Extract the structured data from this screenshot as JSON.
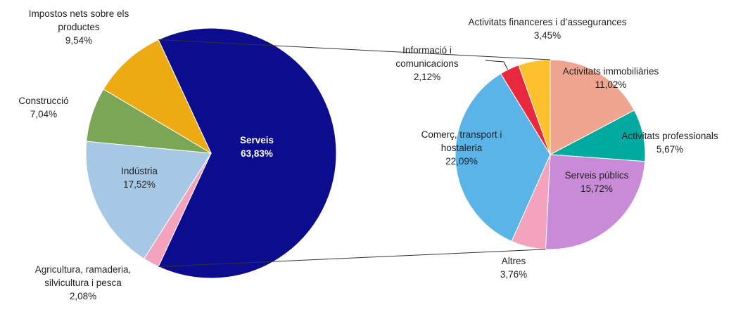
{
  "chart_data": [
    {
      "type": "pie",
      "categories": [
        "Serveis",
        "Agricultura, ramaderia, silvicultura i pesca",
        "Indústria",
        "Construcció",
        "Impostos nets sobre els productes"
      ],
      "values": [
        63.83,
        2.08,
        17.52,
        7.04,
        9.54
      ],
      "value_labels": [
        "63,83%",
        "2,08%",
        "17,52%",
        "7,04%",
        "9,54%"
      ],
      "colors": [
        "#0c0c8e",
        "#f4a3bf",
        "#a6c8e4",
        "#7aa655",
        "#eeaa12"
      ]
    },
    {
      "type": "pie",
      "categories": [
        "Activitats immobiliàries",
        "Activitats professionals",
        "Serveis públics",
        "Altres",
        "Comerç, transport i hostaleria",
        "Informació i comunicacions",
        "Activitats financeres i d’assegurances"
      ],
      "values": [
        11.02,
        5.67,
        15.72,
        3.76,
        22.09,
        2.12,
        3.45
      ],
      "value_labels": [
        "11,02%",
        "5,67%",
        "15,72%",
        "3,76%",
        "22,09%",
        "2,12%",
        "3,45%"
      ],
      "colors": [
        "#f0a591",
        "#00aaa0",
        "#c98ad8",
        "#f4a3bf",
        "#5bb4e8",
        "#e8283c",
        "#fcc12d"
      ]
    }
  ]
}
